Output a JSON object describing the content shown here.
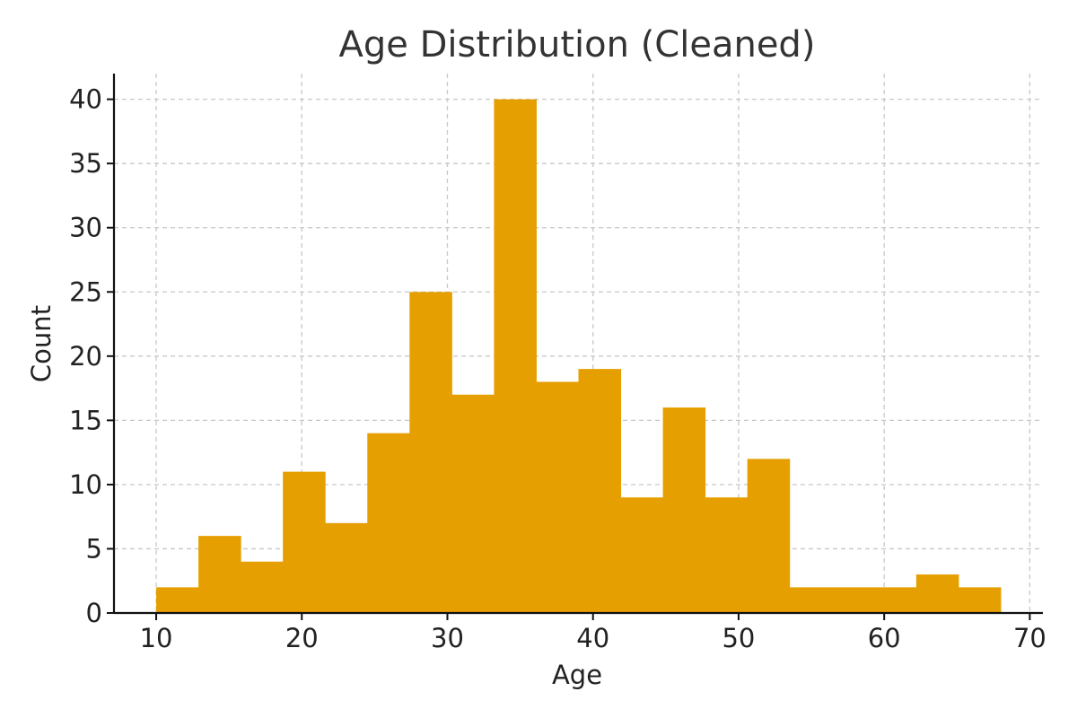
{
  "chart_data": {
    "type": "bar",
    "title": "Age Distribution (Cleaned)",
    "xlabel": "Age",
    "ylabel": "Count",
    "bin_edges": [
      10,
      12.9,
      15.8,
      18.7,
      21.6,
      24.5,
      27.4,
      30.3,
      33.2,
      36.1,
      39.0,
      41.9,
      44.8,
      47.7,
      50.6,
      53.5,
      56.4,
      59.3,
      62.2,
      65.1,
      68.0
    ],
    "values": [
      2,
      6,
      4,
      11,
      7,
      14,
      25,
      17,
      40,
      18,
      19,
      9,
      16,
      9,
      12,
      2,
      2,
      2,
      3,
      2
    ],
    "xticks": [
      10,
      20,
      30,
      40,
      50,
      60,
      70
    ],
    "yticks": [
      0,
      5,
      10,
      15,
      20,
      25,
      30,
      35,
      40
    ],
    "xlim": [
      7.1,
      70.9
    ],
    "ylim": [
      0,
      42
    ],
    "grid": true,
    "bar_color": "#E69F00"
  }
}
